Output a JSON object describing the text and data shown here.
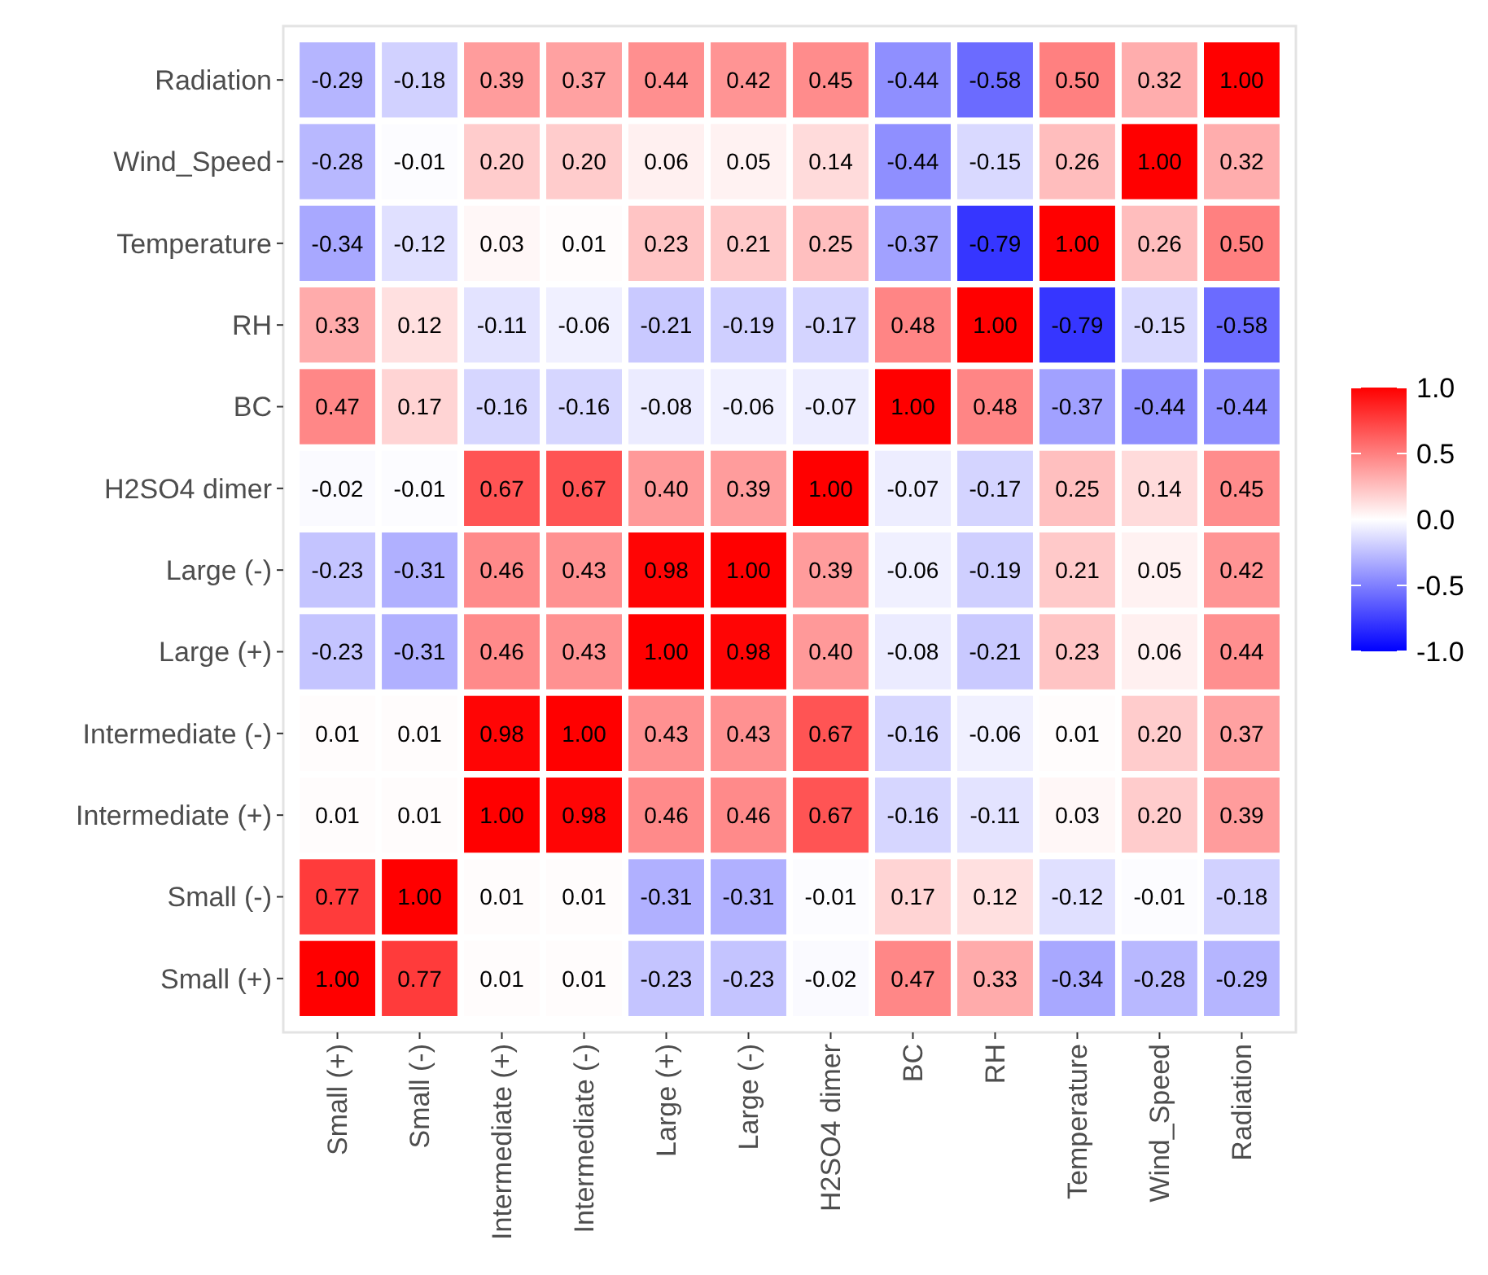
{
  "chart_data": {
    "type": "heatmap",
    "categories": [
      "Small (+)",
      "Small (-)",
      "Intermediate (+)",
      "Intermediate (-)",
      "Large (+)",
      "Large (-)",
      "H2SO4 dimer",
      "BC",
      "RH",
      "Temperature",
      "Wind_Speed",
      "Radiation"
    ],
    "y_categories": [
      "Radiation",
      "Wind_Speed",
      "Temperature",
      "RH",
      "BC",
      "H2SO4 dimer",
      "Large (-)",
      "Large (+)",
      "Intermediate (-)",
      "Intermediate (+)",
      "Small (-)",
      "Small (+)"
    ],
    "cells": [
      [
        -0.29,
        -0.18,
        0.39,
        0.37,
        0.44,
        0.42,
        0.45,
        -0.44,
        -0.58,
        0.5,
        0.32,
        1.0
      ],
      [
        -0.28,
        -0.01,
        0.2,
        0.2,
        0.06,
        0.05,
        0.14,
        -0.44,
        -0.15,
        0.26,
        1.0,
        0.32
      ],
      [
        -0.34,
        -0.12,
        0.03,
        0.01,
        0.23,
        0.21,
        0.25,
        -0.37,
        -0.79,
        1.0,
        0.26,
        0.5
      ],
      [
        0.33,
        0.12,
        -0.11,
        -0.06,
        -0.21,
        -0.19,
        -0.17,
        0.48,
        1.0,
        -0.79,
        -0.15,
        -0.58
      ],
      [
        0.47,
        0.17,
        -0.16,
        -0.16,
        -0.08,
        -0.06,
        -0.07,
        1.0,
        0.48,
        -0.37,
        -0.44,
        -0.44
      ],
      [
        -0.02,
        -0.01,
        0.67,
        0.67,
        0.4,
        0.39,
        1.0,
        -0.07,
        -0.17,
        0.25,
        0.14,
        0.45
      ],
      [
        -0.23,
        -0.31,
        0.46,
        0.43,
        0.98,
        1.0,
        0.39,
        -0.06,
        -0.19,
        0.21,
        0.05,
        0.42
      ],
      [
        -0.23,
        -0.31,
        0.46,
        0.43,
        1.0,
        0.98,
        0.4,
        -0.08,
        -0.21,
        0.23,
        0.06,
        0.44
      ],
      [
        0.01,
        0.01,
        0.98,
        1.0,
        0.43,
        0.43,
        0.67,
        -0.16,
        -0.06,
        0.01,
        0.2,
        0.37
      ],
      [
        0.01,
        0.01,
        1.0,
        0.98,
        0.46,
        0.46,
        0.67,
        -0.16,
        -0.11,
        0.03,
        0.2,
        0.39
      ],
      [
        0.77,
        1.0,
        0.01,
        0.01,
        -0.31,
        -0.31,
        -0.01,
        0.17,
        0.12,
        -0.12,
        -0.01,
        -0.18
      ],
      [
        1.0,
        0.77,
        0.01,
        0.01,
        -0.23,
        -0.23,
        -0.02,
        0.47,
        0.33,
        -0.34,
        -0.28,
        -0.29
      ]
    ],
    "cell_labels": [
      [
        "-0.29",
        "-0.18",
        "0.39",
        "0.37",
        "0.44",
        "0.42",
        "0.45",
        "-0.44",
        "-0.58",
        "0.50",
        "0.32",
        "1.00"
      ],
      [
        "-0.28",
        "-0.01",
        "0.20",
        "0.20",
        "0.06",
        "0.05",
        "0.14",
        "-0.44",
        "-0.15",
        "0.26",
        "1.00",
        "0.32"
      ],
      [
        "-0.34",
        "-0.12",
        "0.03",
        "0.01",
        "0.23",
        "0.21",
        "0.25",
        "-0.37",
        "-0.79",
        "1.00",
        "0.26",
        "0.50"
      ],
      [
        "0.33",
        "0.12",
        "-0.11",
        "-0.06",
        "-0.21",
        "-0.19",
        "-0.17",
        "0.48",
        "1.00",
        "-0.79",
        "-0.15",
        "-0.58"
      ],
      [
        "0.47",
        "0.17",
        "-0.16",
        "-0.16",
        "-0.08",
        "-0.06",
        "-0.07",
        "1.00",
        "0.48",
        "-0.37",
        "-0.44",
        "-0.44"
      ],
      [
        "-0.02",
        "-0.01",
        "0.67",
        "0.67",
        "0.40",
        "0.39",
        "1.00",
        "-0.07",
        "-0.17",
        "0.25",
        "0.14",
        "0.45"
      ],
      [
        "-0.23",
        "-0.31",
        "0.46",
        "0.43",
        "0.98",
        "1.00",
        "0.39",
        "-0.06",
        "-0.19",
        "0.21",
        "0.05",
        "0.42"
      ],
      [
        "-0.23",
        "-0.31",
        "0.46",
        "0.43",
        "1.00",
        "0.98",
        "0.40",
        "-0.08",
        "-0.21",
        "0.23",
        "0.06",
        "0.44"
      ],
      [
        "0.01",
        "0.01",
        "0.98",
        "1.00",
        "0.43",
        "0.43",
        "0.67",
        "-0.16",
        "-0.06",
        "0.01",
        "0.20",
        "0.37"
      ],
      [
        "0.01",
        "0.01",
        "1.00",
        "0.98",
        "0.46",
        "0.46",
        "0.67",
        "-0.16",
        "-0.11",
        "0.03",
        "0.20",
        "0.39"
      ],
      [
        "0.77",
        "1.00",
        "0.01",
        "0.01",
        "-0.31",
        "-0.31",
        "-0.01",
        "0.17",
        "0.12",
        "-0.12",
        "-0.01",
        "-0.18"
      ],
      [
        "1.00",
        "0.77",
        "0.01",
        "0.01",
        "-0.23",
        "-0.23",
        "-0.02",
        "0.47",
        "0.33",
        "-0.34",
        "-0.28",
        "-0.29"
      ]
    ],
    "colors": [
      "#0000ff",
      "#ffffff",
      "#ff0000"
    ],
    "clim": [
      -1,
      1
    ],
    "cticks": [
      {
        "value": -1,
        "label": "-1.0"
      },
      {
        "value": -0.5,
        "label": "-0.5"
      },
      {
        "value": 0,
        "label": "0.0"
      },
      {
        "value": 0.5,
        "label": "0.5"
      },
      {
        "value": 1,
        "label": "1.0"
      }
    ]
  }
}
